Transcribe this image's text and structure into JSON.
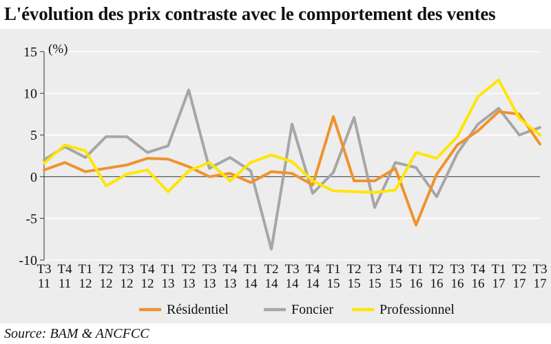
{
  "title": "L'évolution des prix contraste avec le comportement des ventes",
  "source": "Source: BAM & ANCFCC",
  "chart_data": {
    "type": "line",
    "ylabel": "(%)",
    "xlabel": "",
    "ylim": [
      -10,
      15
    ],
    "yticks": [
      15,
      10,
      5,
      0,
      -5,
      -10
    ],
    "grid": "horizontal",
    "legend_position": "bottom",
    "categories": [
      [
        "T3",
        "11"
      ],
      [
        "T4",
        "11"
      ],
      [
        "T1",
        "12"
      ],
      [
        "T2",
        "12"
      ],
      [
        "T3",
        "12"
      ],
      [
        "T4",
        "12"
      ],
      [
        "T1",
        "13"
      ],
      [
        "T2",
        "13"
      ],
      [
        "T3",
        "13"
      ],
      [
        "T4",
        "13"
      ],
      [
        "T1",
        "14"
      ],
      [
        "T2",
        "14"
      ],
      [
        "T3",
        "14"
      ],
      [
        "T4",
        "14"
      ],
      [
        "T1",
        "15"
      ],
      [
        "T2",
        "15"
      ],
      [
        "T3",
        "15"
      ],
      [
        "T4",
        "15"
      ],
      [
        "T1",
        "16"
      ],
      [
        "T2",
        "16"
      ],
      [
        "T3",
        "16"
      ],
      [
        "T4",
        "16"
      ],
      [
        "T1",
        "17"
      ],
      [
        "T2",
        "17"
      ],
      [
        "T3",
        "17"
      ]
    ],
    "series": [
      {
        "name": "Foncier",
        "color": "#a6a6a6",
        "values": [
          2.0,
          3.6,
          2.3,
          4.8,
          4.8,
          2.9,
          3.7,
          10.4,
          1.0,
          2.3,
          0.7,
          -8.7,
          6.3,
          -2.0,
          0.5,
          7.1,
          -3.7,
          1.7,
          1.1,
          -2.4,
          2.8,
          6.3,
          8.2,
          5.0,
          5.9
        ]
      },
      {
        "name": "Résidentiel",
        "color": "#f0922c",
        "values": [
          0.8,
          1.7,
          0.6,
          1.0,
          1.4,
          2.2,
          2.1,
          1.2,
          0.0,
          0.4,
          -0.7,
          0.6,
          0.4,
          -1.0,
          7.2,
          -0.5,
          -0.5,
          1.0,
          -5.8,
          0.3,
          3.8,
          5.5,
          7.8,
          7.5,
          3.9
        ]
      },
      {
        "name": "Professionnel",
        "color": "#ffe600",
        "values": [
          1.6,
          3.8,
          3.1,
          -1.1,
          0.3,
          0.8,
          -1.8,
          0.7,
          1.7,
          -0.5,
          1.7,
          2.6,
          1.8,
          -0.5,
          -1.7,
          -1.8,
          -1.9,
          -1.6,
          2.9,
          2.2,
          4.8,
          9.6,
          11.6,
          7.0,
          5.0
        ]
      }
    ],
    "legend": [
      {
        "name": "Résidentiel",
        "color": "#f0922c"
      },
      {
        "name": "Foncier",
        "color": "#a6a6a6"
      },
      {
        "name": "Professionnel",
        "color": "#ffe600"
      }
    ]
  }
}
